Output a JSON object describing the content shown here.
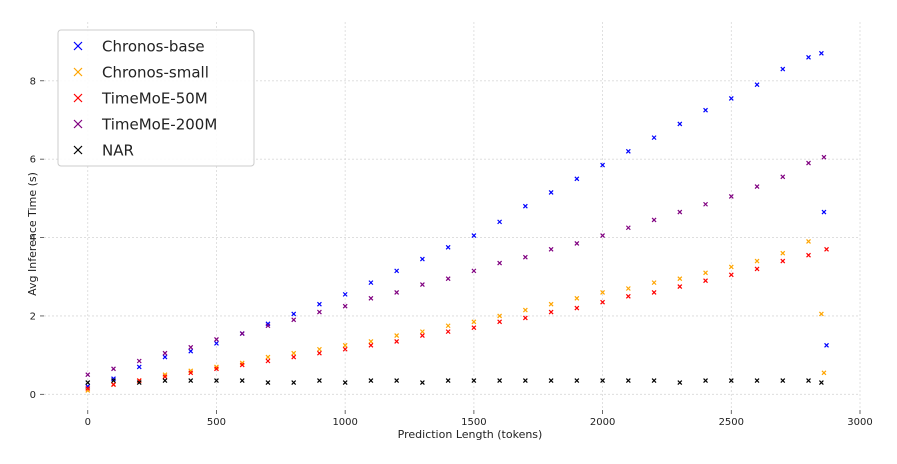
{
  "chart_data": {
    "type": "scatter",
    "title": "",
    "xlabel": "Prediction Length (tokens)",
    "ylabel": "Avg Inference Time (s)",
    "xlim": [
      -170,
      3000
    ],
    "ylim": [
      -0.4,
      9.5
    ],
    "xticks": [
      0,
      500,
      1000,
      1500,
      2000,
      2500,
      3000
    ],
    "yticks": [
      0,
      2,
      4,
      6,
      8
    ],
    "grid": true,
    "legend_position": "top-left",
    "marker": "x",
    "series": [
      {
        "name": "Chronos-base",
        "color": "#0000ff",
        "x": [
          0,
          100,
          200,
          300,
          400,
          500,
          600,
          700,
          800,
          900,
          1000,
          1100,
          1200,
          1300,
          1400,
          1500,
          1600,
          1700,
          1800,
          1900,
          2000,
          2100,
          2200,
          2300,
          2400,
          2500,
          2600,
          2700,
          2800,
          2850,
          2860,
          2870
        ],
        "y": [
          0.2,
          0.4,
          0.7,
          0.95,
          1.1,
          1.3,
          1.55,
          1.8,
          2.05,
          2.3,
          2.55,
          2.85,
          3.15,
          3.45,
          3.75,
          4.05,
          4.4,
          4.8,
          5.15,
          5.5,
          5.85,
          6.2,
          6.55,
          6.9,
          7.25,
          7.55,
          7.9,
          8.3,
          8.6,
          8.7,
          4.65,
          1.25
        ]
      },
      {
        "name": "Chronos-small",
        "color": "#ffa500",
        "x": [
          0,
          100,
          200,
          300,
          400,
          500,
          600,
          700,
          800,
          900,
          1000,
          1100,
          1200,
          1300,
          1400,
          1500,
          1600,
          1700,
          1800,
          1900,
          2000,
          2100,
          2200,
          2300,
          2400,
          2500,
          2600,
          2700,
          2800,
          2850,
          2860
        ],
        "y": [
          0.1,
          0.25,
          0.35,
          0.5,
          0.6,
          0.7,
          0.8,
          0.95,
          1.05,
          1.15,
          1.25,
          1.35,
          1.5,
          1.6,
          1.75,
          1.85,
          2.0,
          2.15,
          2.3,
          2.45,
          2.6,
          2.7,
          2.85,
          2.95,
          3.1,
          3.25,
          3.4,
          3.6,
          3.9,
          2.05,
          0.55
        ]
      },
      {
        "name": "TimeMoE-50M",
        "color": "#ff0000",
        "x": [
          0,
          100,
          200,
          300,
          400,
          500,
          600,
          700,
          800,
          900,
          1000,
          1100,
          1200,
          1300,
          1400,
          1500,
          1600,
          1700,
          1800,
          1900,
          2000,
          2100,
          2200,
          2300,
          2400,
          2500,
          2600,
          2700,
          2800,
          2870
        ],
        "y": [
          0.15,
          0.25,
          0.35,
          0.45,
          0.55,
          0.65,
          0.75,
          0.85,
          0.95,
          1.05,
          1.15,
          1.25,
          1.35,
          1.5,
          1.6,
          1.7,
          1.85,
          1.95,
          2.1,
          2.2,
          2.35,
          2.5,
          2.6,
          2.75,
          2.9,
          3.05,
          3.2,
          3.4,
          3.55,
          3.7
        ]
      },
      {
        "name": "TimeMoE-200M",
        "color": "#800080",
        "x": [
          0,
          100,
          200,
          300,
          400,
          500,
          600,
          700,
          800,
          900,
          1000,
          1100,
          1200,
          1300,
          1400,
          1500,
          1600,
          1700,
          1800,
          1900,
          2000,
          2100,
          2200,
          2300,
          2400,
          2500,
          2600,
          2700,
          2800,
          2860
        ],
        "y": [
          0.5,
          0.65,
          0.85,
          1.05,
          1.2,
          1.4,
          1.55,
          1.75,
          1.9,
          2.1,
          2.25,
          2.45,
          2.6,
          2.8,
          2.95,
          3.15,
          3.35,
          3.5,
          3.7,
          3.85,
          4.05,
          4.25,
          4.45,
          4.65,
          4.85,
          5.05,
          5.3,
          5.55,
          5.9,
          6.05
        ]
      },
      {
        "name": "NAR",
        "color": "#000000",
        "x": [
          0,
          100,
          200,
          300,
          400,
          500,
          600,
          700,
          800,
          900,
          1000,
          1100,
          1200,
          1300,
          1400,
          1500,
          1600,
          1700,
          1800,
          1900,
          2000,
          2100,
          2200,
          2300,
          2400,
          2500,
          2600,
          2700,
          2800,
          2850
        ],
        "y": [
          0.3,
          0.35,
          0.3,
          0.35,
          0.35,
          0.35,
          0.35,
          0.3,
          0.3,
          0.35,
          0.3,
          0.35,
          0.35,
          0.3,
          0.35,
          0.35,
          0.35,
          0.35,
          0.35,
          0.35,
          0.35,
          0.35,
          0.35,
          0.3,
          0.35,
          0.35,
          0.35,
          0.35,
          0.35,
          0.3
        ]
      }
    ]
  }
}
